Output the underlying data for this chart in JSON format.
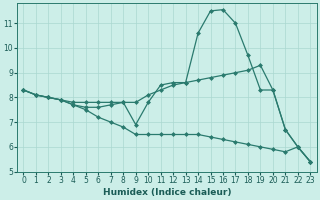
{
  "xlabel": "Humidex (Indice chaleur)",
  "bg_color": "#cceee8",
  "line_color": "#2a7a6e",
  "grid_color": "#aad8d0",
  "xlim": [
    -0.5,
    23.5
  ],
  "ylim": [
    5,
    11.8
  ],
  "yticks": [
    5,
    6,
    7,
    8,
    9,
    10,
    11
  ],
  "xticks": [
    0,
    1,
    2,
    3,
    4,
    5,
    6,
    7,
    8,
    9,
    10,
    11,
    12,
    13,
    14,
    15,
    16,
    17,
    18,
    19,
    20,
    21,
    22,
    23
  ],
  "line1_x": [
    0,
    1,
    2,
    3,
    4,
    5,
    6,
    7,
    8,
    9,
    10,
    11,
    12,
    13,
    14,
    15,
    16,
    17,
    18,
    19,
    20,
    21,
    22,
    23
  ],
  "line1_y": [
    8.3,
    8.1,
    8.0,
    7.9,
    7.7,
    7.5,
    7.2,
    7.0,
    6.8,
    6.5,
    6.5,
    6.5,
    6.5,
    6.5,
    6.5,
    6.4,
    6.3,
    6.2,
    6.1,
    6.0,
    5.9,
    5.8,
    6.0,
    5.4
  ],
  "line2_x": [
    0,
    1,
    2,
    3,
    4,
    5,
    6,
    7,
    8,
    9,
    10,
    11,
    12,
    13,
    14,
    15,
    16,
    17,
    18,
    19,
    20,
    21,
    22,
    23
  ],
  "line2_y": [
    8.3,
    8.1,
    8.0,
    7.9,
    7.8,
    7.8,
    7.8,
    7.8,
    7.8,
    7.8,
    8.1,
    8.3,
    8.5,
    8.6,
    8.7,
    8.8,
    8.9,
    9.0,
    9.1,
    9.3,
    8.3,
    6.7,
    6.0,
    5.4
  ],
  "line3_x": [
    0,
    1,
    2,
    3,
    4,
    5,
    6,
    7,
    8,
    9,
    10,
    11,
    12,
    13,
    14,
    15,
    16,
    17,
    18,
    19,
    20,
    21,
    22,
    23
  ],
  "line3_y": [
    8.3,
    8.1,
    8.0,
    7.9,
    7.7,
    7.6,
    7.6,
    7.7,
    7.8,
    6.9,
    7.8,
    8.5,
    8.6,
    8.6,
    10.6,
    11.5,
    11.55,
    11.0,
    9.7,
    8.3,
    8.3,
    6.7,
    6.0,
    5.4
  ]
}
